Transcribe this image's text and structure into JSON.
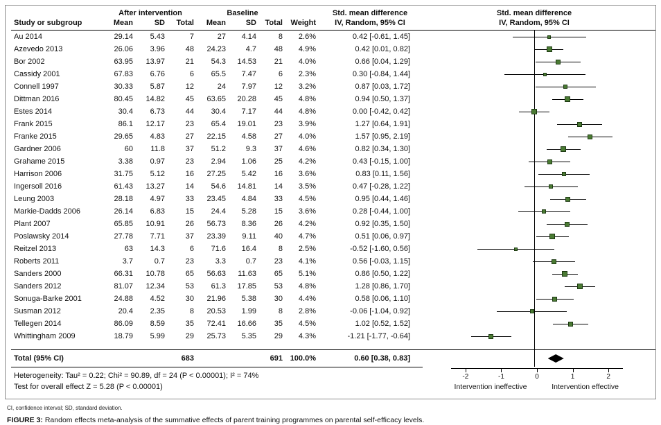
{
  "header": {
    "study_col": "Study or subgroup",
    "group1": "After intervention",
    "group2": "Baseline",
    "mean": "Mean",
    "sd": "SD",
    "total": "Total",
    "weight": "Weight",
    "smd_line1": "Std. mean difference",
    "smd_line2": "IV, Random, 95% CI"
  },
  "chart_data": {
    "type": "forest",
    "x_ticks": [
      -2,
      -1,
      0,
      1,
      2
    ],
    "xlim": [
      -3.2,
      3.2
    ],
    "axis_label_left": "Intervention ineffective",
    "axis_label_right": "Intervention effective",
    "axis_extent": 2.4,
    "label_pos_left": -1.3,
    "label_pos_right": 1.35,
    "marker_color": "#4a7a33",
    "diamond_color": "#000000",
    "studies": [
      {
        "name": "Au 2014",
        "mean1": "29.14",
        "sd1": "5.43",
        "n1": "7",
        "mean2": "27",
        "sd2": "4.14",
        "n2": "8",
        "weight": "2.6%",
        "ci": "0.42 [-0.61, 1.45]",
        "est": 0.42,
        "lo": -0.61,
        "hi": 1.45
      },
      {
        "name": "Azevedo 2013",
        "mean1": "26.06",
        "sd1": "3.96",
        "n1": "48",
        "mean2": "24.23",
        "sd2": "4.7",
        "n2": "48",
        "weight": "4.9%",
        "ci": "0.42 [0.01, 0.82]",
        "est": 0.42,
        "lo": 0.01,
        "hi": 0.82
      },
      {
        "name": "Bor 2002",
        "mean1": "63.95",
        "sd1": "13.97",
        "n1": "21",
        "mean2": "54.3",
        "sd2": "14.53",
        "n2": "21",
        "weight": "4.0%",
        "ci": "0.66 [0.04, 1.29]",
        "est": 0.66,
        "lo": 0.04,
        "hi": 1.29
      },
      {
        "name": "Cassidy 2001",
        "mean1": "67.83",
        "sd1": "6.76",
        "n1": "6",
        "mean2": "65.5",
        "sd2": "7.47",
        "n2": "6",
        "weight": "2.3%",
        "ci": "0.30 [-0.84, 1.44]",
        "est": 0.3,
        "lo": -0.84,
        "hi": 1.44
      },
      {
        "name": "Connell 1997",
        "mean1": "30.33",
        "sd1": "5.87",
        "n1": "12",
        "mean2": "24",
        "sd2": "7.97",
        "n2": "12",
        "weight": "3.2%",
        "ci": "0.87 [0.03, 1.72]",
        "est": 0.87,
        "lo": 0.03,
        "hi": 1.72
      },
      {
        "name": "Dittman 2016",
        "mean1": "80.45",
        "sd1": "14.82",
        "n1": "45",
        "mean2": "63.65",
        "sd2": "20.28",
        "n2": "45",
        "weight": "4.8%",
        "ci": "0.94 [0.50, 1.37]",
        "est": 0.94,
        "lo": 0.5,
        "hi": 1.37
      },
      {
        "name": "Estes 2014",
        "mean1": "30.4",
        "sd1": "6.73",
        "n1": "44",
        "mean2": "30.4",
        "sd2": "7.17",
        "n2": "44",
        "weight": "4.8%",
        "ci": "0.00 [-0.42, 0.42]",
        "est": 0.0,
        "lo": -0.42,
        "hi": 0.42
      },
      {
        "name": "Frank 2015",
        "mean1": "86.1",
        "sd1": "12.17",
        "n1": "23",
        "mean2": "65.4",
        "sd2": "19.01",
        "n2": "23",
        "weight": "3.9%",
        "ci": "1.27 [0.64, 1.91]",
        "est": 1.27,
        "lo": 0.64,
        "hi": 1.91
      },
      {
        "name": "Franke 2015",
        "mean1": "29.65",
        "sd1": "4.83",
        "n1": "27",
        "mean2": "22.15",
        "sd2": "4.58",
        "n2": "27",
        "weight": "4.0%",
        "ci": "1.57 [0.95, 2.19]",
        "est": 1.57,
        "lo": 0.95,
        "hi": 2.19
      },
      {
        "name": "Gardner 2006",
        "mean1": "60",
        "sd1": "11.8",
        "n1": "37",
        "mean2": "51.2",
        "sd2": "9.3",
        "n2": "37",
        "weight": "4.6%",
        "ci": "0.82 [0.34, 1.30]",
        "est": 0.82,
        "lo": 0.34,
        "hi": 1.3
      },
      {
        "name": "Grahame 2015",
        "mean1": "3.38",
        "sd1": "0.97",
        "n1": "23",
        "mean2": "2.94",
        "sd2": "1.06",
        "n2": "25",
        "weight": "4.2%",
        "ci": "0.43 [-0.15, 1.00]",
        "est": 0.43,
        "lo": -0.15,
        "hi": 1.0
      },
      {
        "name": "Harrison 2006",
        "mean1": "31.75",
        "sd1": "5.12",
        "n1": "16",
        "mean2": "27.25",
        "sd2": "5.42",
        "n2": "16",
        "weight": "3.6%",
        "ci": "0.83 [0.11, 1.56]",
        "est": 0.83,
        "lo": 0.11,
        "hi": 1.56
      },
      {
        "name": "Ingersoll 2016",
        "mean1": "61.43",
        "sd1": "13.27",
        "n1": "14",
        "mean2": "54.6",
        "sd2": "14.81",
        "n2": "14",
        "weight": "3.5%",
        "ci": "0.47 [-0.28, 1.22]",
        "est": 0.47,
        "lo": -0.28,
        "hi": 1.22
      },
      {
        "name": "Leung 2003",
        "mean1": "28.18",
        "sd1": "4.97",
        "n1": "33",
        "mean2": "23.45",
        "sd2": "4.84",
        "n2": "33",
        "weight": "4.5%",
        "ci": "0.95 [0.44, 1.46]",
        "est": 0.95,
        "lo": 0.44,
        "hi": 1.46
      },
      {
        "name": "Markie-Dadds 2006",
        "mean1": "26.14",
        "sd1": "6.83",
        "n1": "15",
        "mean2": "24.4",
        "sd2": "5.28",
        "n2": "15",
        "weight": "3.6%",
        "ci": "0.28 [-0.44, 1.00]",
        "est": 0.28,
        "lo": -0.44,
        "hi": 1.0
      },
      {
        "name": "Plant 2007",
        "mean1": "65.85",
        "sd1": "10.91",
        "n1": "26",
        "mean2": "56.73",
        "sd2": "8.36",
        "n2": "26",
        "weight": "4.2%",
        "ci": "0.92 [0.35, 1.50]",
        "est": 0.92,
        "lo": 0.35,
        "hi": 1.5
      },
      {
        "name": "Poslawsky 2014",
        "mean1": "27.78",
        "sd1": "7.71",
        "n1": "37",
        "mean2": "23.39",
        "sd2": "9.11",
        "n2": "40",
        "weight": "4.7%",
        "ci": "0.51 [0.06, 0.97]",
        "est": 0.51,
        "lo": 0.06,
        "hi": 0.97
      },
      {
        "name": "Reitzel 2013",
        "mean1": "63",
        "sd1": "14.3",
        "n1": "6",
        "mean2": "71.6",
        "sd2": "16.4",
        "n2": "8",
        "weight": "2.5%",
        "ci": "-0.52 [-1.60, 0.56]",
        "est": -0.52,
        "lo": -1.6,
        "hi": 0.56
      },
      {
        "name": "Roberts 2011",
        "mean1": "3.7",
        "sd1": "0.7",
        "n1": "23",
        "mean2": "3.3",
        "sd2": "0.7",
        "n2": "23",
        "weight": "4.1%",
        "ci": "0.56 [-0.03, 1.15]",
        "est": 0.56,
        "lo": -0.03,
        "hi": 1.15
      },
      {
        "name": "Sanders 2000",
        "mean1": "66.31",
        "sd1": "10.78",
        "n1": "65",
        "mean2": "56.63",
        "sd2": "11.63",
        "n2": "65",
        "weight": "5.1%",
        "ci": "0.86 [0.50, 1.22]",
        "est": 0.86,
        "lo": 0.5,
        "hi": 1.22
      },
      {
        "name": "Sanders 2012",
        "mean1": "81.07",
        "sd1": "12.34",
        "n1": "53",
        "mean2": "61.3",
        "sd2": "17.85",
        "n2": "53",
        "weight": "4.8%",
        "ci": "1.28 [0.86, 1.70]",
        "est": 1.28,
        "lo": 0.86,
        "hi": 1.7
      },
      {
        "name": "Sonuga-Barke 2001",
        "mean1": "24.88",
        "sd1": "4.52",
        "n1": "30",
        "mean2": "21.96",
        "sd2": "5.38",
        "n2": "30",
        "weight": "4.4%",
        "ci": "0.58 [0.06, 1.10]",
        "est": 0.58,
        "lo": 0.06,
        "hi": 1.1
      },
      {
        "name": "Susman 2012",
        "mean1": "20.4",
        "sd1": "2.35",
        "n1": "8",
        "mean2": "20.53",
        "sd2": "1.99",
        "n2": "8",
        "weight": "2.8%",
        "ci": "-0.06 [-1.04, 0.92]",
        "est": -0.06,
        "lo": -1.04,
        "hi": 0.92
      },
      {
        "name": "Tellegen 2014",
        "mean1": "86.09",
        "sd1": "8.59",
        "n1": "35",
        "mean2": "72.41",
        "sd2": "16.66",
        "n2": "35",
        "weight": "4.5%",
        "ci": "1.02 [0.52, 1.52]",
        "est": 1.02,
        "lo": 0.52,
        "hi": 1.52
      },
      {
        "name": "Whittingham 2009",
        "mean1": "18.79",
        "sd1": "5.99",
        "n1": "29",
        "mean2": "25.73",
        "sd2": "5.35",
        "n2": "29",
        "weight": "4.3%",
        "ci": "-1.21 [-1.77, -0.64]",
        "est": -1.21,
        "lo": -1.77,
        "hi": -0.64
      }
    ],
    "total": {
      "label": "Total (95% CI)",
      "n1": "683",
      "n2": "691",
      "weight": "100.0%",
      "ci": "0.60 [0.38, 0.83]",
      "est": 0.6,
      "lo": 0.38,
      "hi": 0.83
    }
  },
  "footer": {
    "heterogeneity": "Heterogeneity: Tau² = 0.22; Chi² = 90.89, df = 24 (P < 0.00001); I² = 74%",
    "overall": "Test for overall effect Z = 5.28 (P < 0.00001)"
  },
  "below": {
    "abbrev": "CI, confidence interval; SD, standard deviation.",
    "caption_label": "FIGURE 3:",
    "caption_text": " Random effects meta-analysis of the summative effects of parent training programmes on parental self-efficacy levels."
  }
}
